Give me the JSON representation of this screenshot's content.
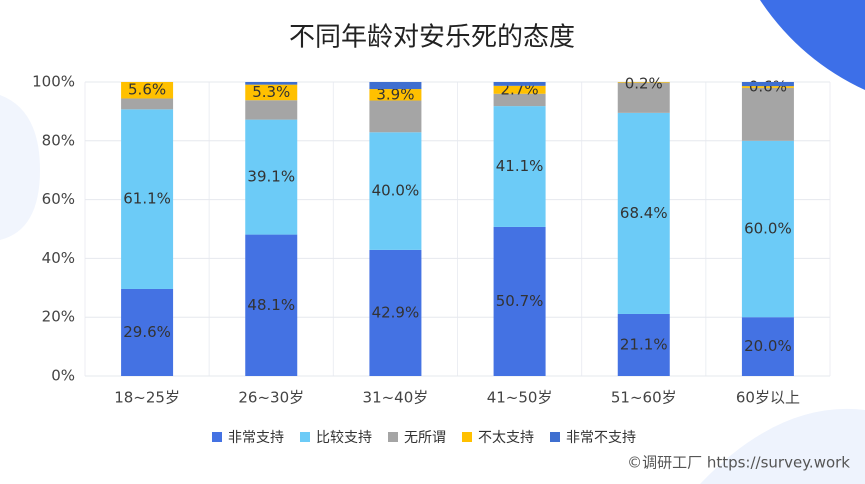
{
  "chart_data": {
    "type": "stacked-bar",
    "title": "不同年龄对安乐死的态度",
    "categories": [
      "18~25岁",
      "26~30岁",
      "31~40岁",
      "41~50岁",
      "51~60岁",
      "60岁以上"
    ],
    "series": [
      {
        "name": "非常支持",
        "color": "#4472e3",
        "values": [
          29.6,
          48.1,
          42.9,
          50.7,
          21.1,
          20.0
        ],
        "value_labels": [
          "29.6%",
          "48.1%",
          "42.9%",
          "50.7%",
          "21.1%",
          "20.0%"
        ]
      },
      {
        "name": "比较支持",
        "color": "#6ccbf7",
        "values": [
          61.1,
          39.1,
          40.0,
          41.1,
          68.4,
          60.0
        ],
        "value_labels": [
          "61.1%",
          "39.1%",
          "40.0%",
          "41.1%",
          "68.4%",
          "60.0%"
        ]
      },
      {
        "name": "无所谓",
        "color": "#a5a5a5",
        "values": [
          3.7,
          6.6,
          10.8,
          4.2,
          10.3,
          18.0
        ],
        "value_labels": [
          null,
          null,
          null,
          null,
          null,
          null
        ]
      },
      {
        "name": "不太支持",
        "color": "#ffc000",
        "values": [
          5.6,
          5.3,
          3.9,
          2.7,
          0.2,
          0.6
        ],
        "value_labels": [
          "5.6%",
          "5.3%",
          "3.9%",
          "2.7%",
          "0.2%",
          "0.6%"
        ]
      },
      {
        "name": "非常不支持",
        "color": "#3f6fd0",
        "values": [
          0,
          0.9,
          2.4,
          1.3,
          0,
          1.4
        ],
        "value_labels": [
          null,
          null,
          null,
          null,
          null,
          null
        ]
      }
    ],
    "ylim": [
      0,
      100
    ],
    "yticks": [
      {
        "value": 0,
        "label": "0%"
      },
      {
        "value": 20,
        "label": "20%"
      },
      {
        "value": 40,
        "label": "40%"
      },
      {
        "value": 60,
        "label": "60%"
      },
      {
        "value": 80,
        "label": "80%"
      },
      {
        "value": 100,
        "label": "100%"
      }
    ],
    "grid": true,
    "footer": "©调研工厂 https://survey.work"
  }
}
